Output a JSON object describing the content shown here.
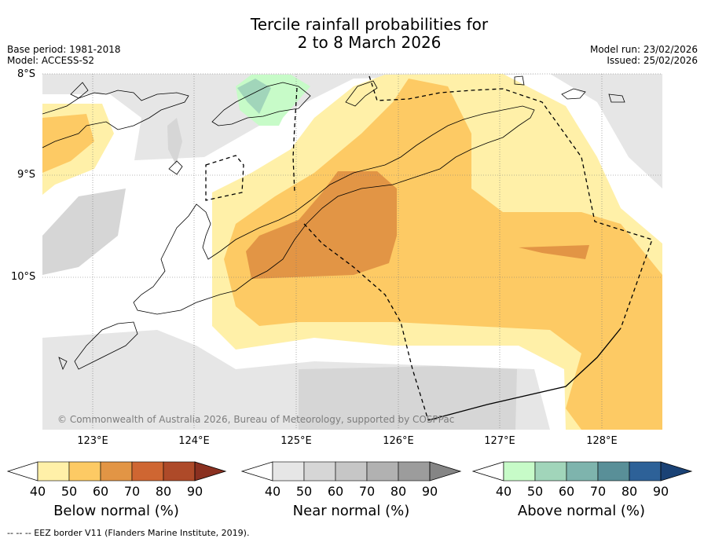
{
  "title_line1": "Tercile rainfall probabilities for",
  "title_line2": "2 to 8 March 2026",
  "base_period": "Base period: 1981-2018",
  "model": "Model: ACCESS-S2",
  "model_run": "Model run: 23/02/2026",
  "issued": "Issued: 25/02/2026",
  "latitudes": [
    "8°S",
    "9°S",
    "10°S"
  ],
  "longitudes": [
    "123°E",
    "124°E",
    "125°E",
    "126°E",
    "127°E",
    "128°E"
  ],
  "copyright": "© Commonwealth of Australia 2026, Bureau of Meteorology, supported by COSPPac",
  "colorbars": [
    {
      "label": "Below normal (%)",
      "ticks": [
        "40",
        "50",
        "60",
        "70",
        "80",
        "90"
      ],
      "colors": [
        "#fff0a8",
        "#fdca64",
        "#e29545",
        "#cf6632",
        "#ae4a29",
        "#8a3020"
      ]
    },
    {
      "label": "Near normal (%)",
      "ticks": [
        "40",
        "50",
        "60",
        "70",
        "80",
        "90"
      ],
      "colors": [
        "#e6e6e6",
        "#d6d6d6",
        "#c6c6c6",
        "#b1b1b1",
        "#9c9c9c",
        "#858585"
      ]
    },
    {
      "label": "Above normal (%)",
      "ticks": [
        "40",
        "50",
        "60",
        "70",
        "80",
        "90"
      ],
      "colors": [
        "#c7fbc8",
        "#a1d5ba",
        "#7eb4ad",
        "#598f98",
        "#2d6198",
        "#1a4275"
      ]
    }
  ],
  "footnote": "--  --  -- EEZ border V11 (Flanders Marine Institute, 2019)."
}
